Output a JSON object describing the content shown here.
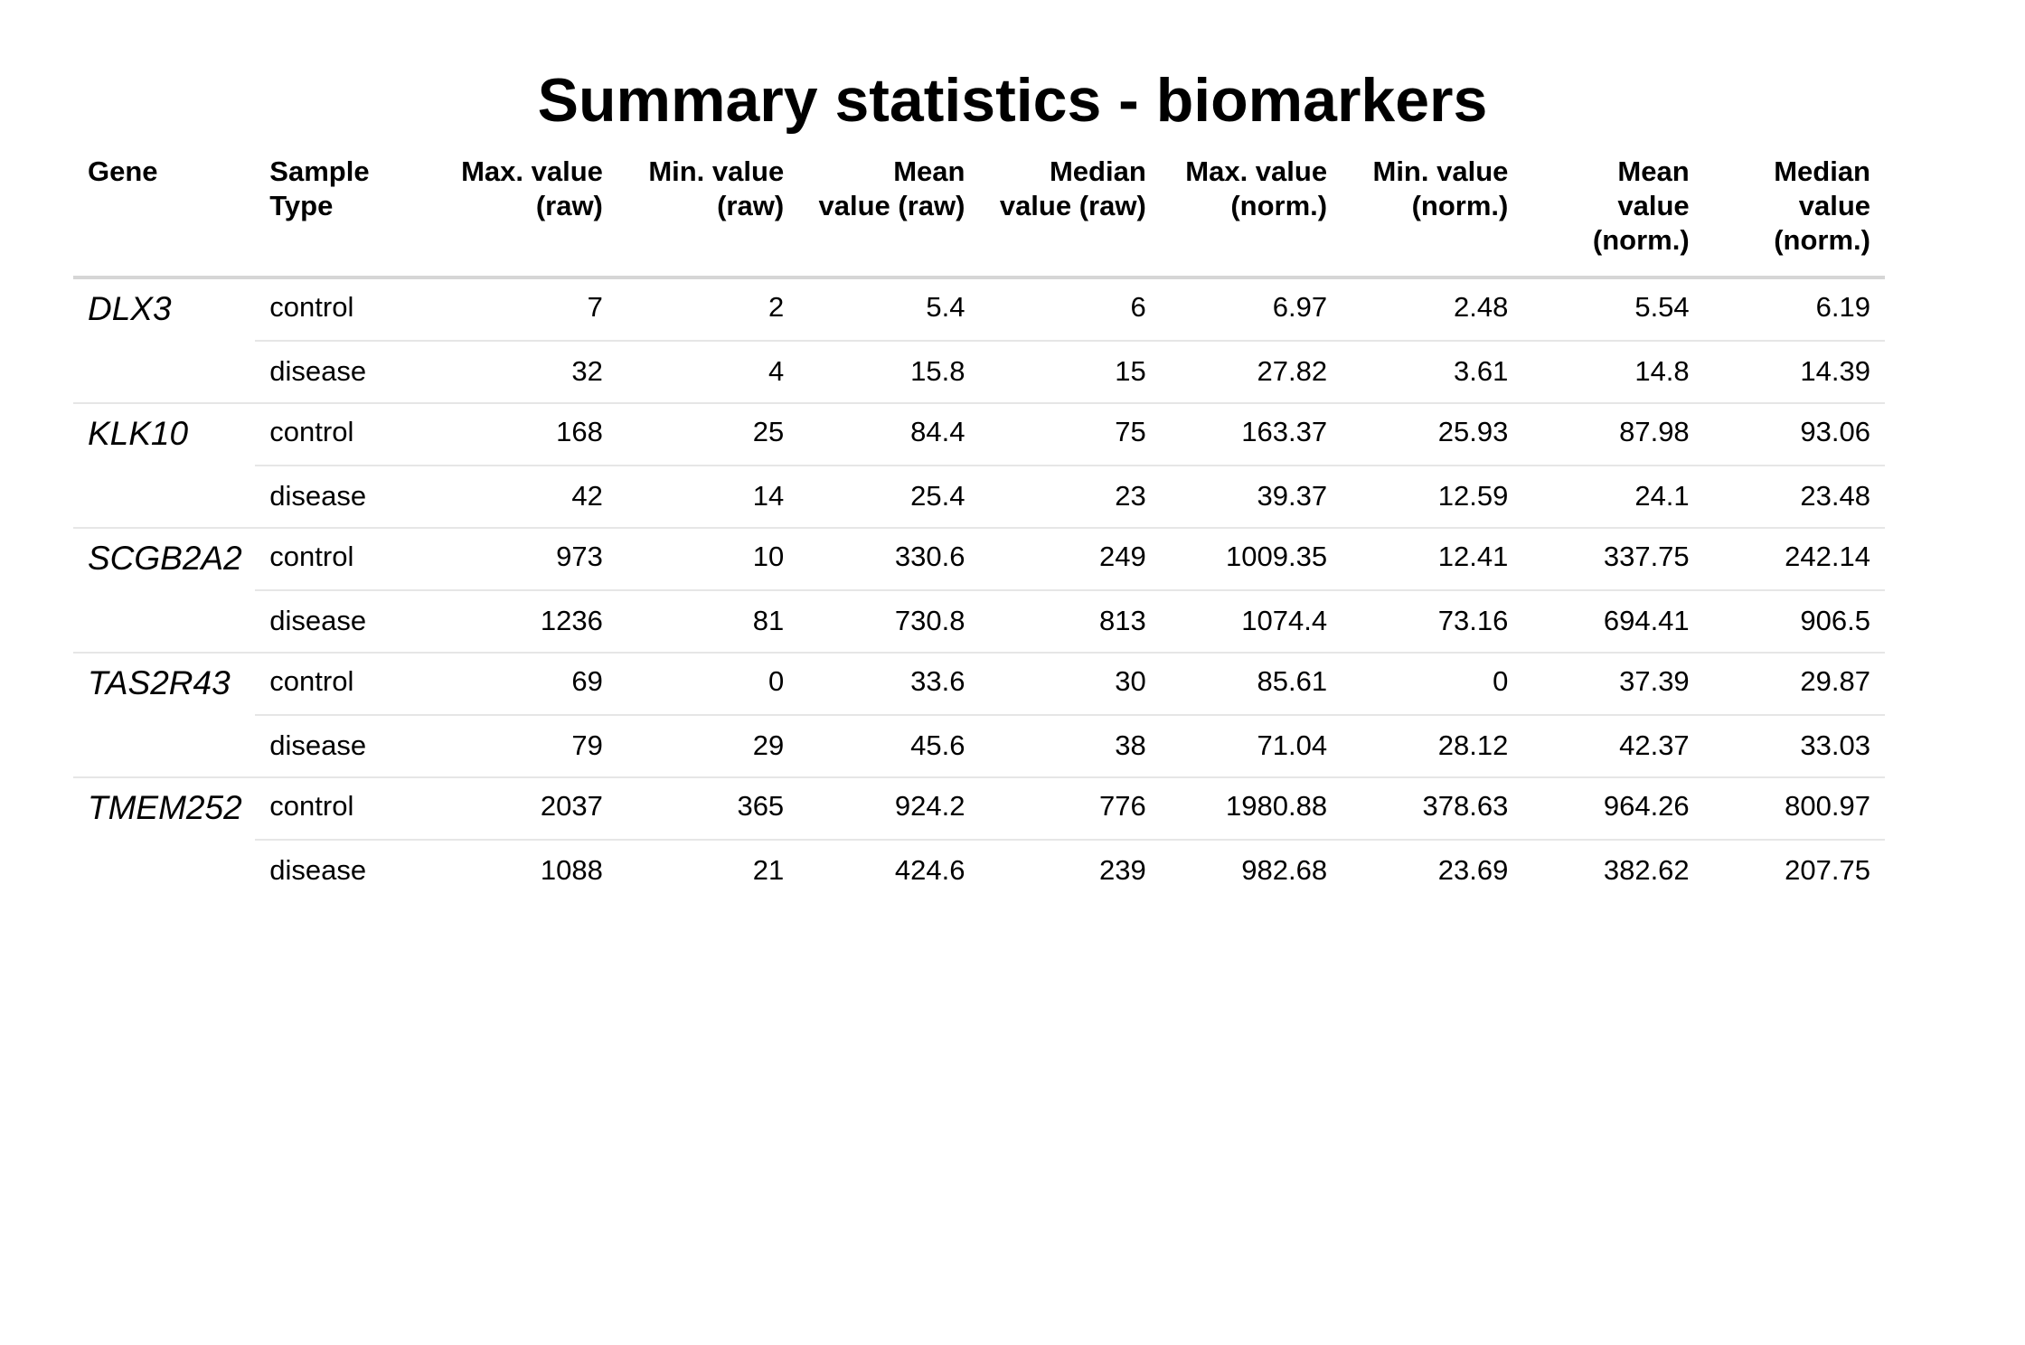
{
  "title": "Summary statistics - biomarkers",
  "chart_data": {
    "type": "table",
    "title": "Summary statistics - biomarkers",
    "columns": [
      "Gene",
      "Sample\nType",
      "Max. value\n(raw)",
      "Min. value\n(raw)",
      "Mean\nvalue (raw)",
      "Median\nvalue (raw)",
      "Max. value\n(norm.)",
      "Min. value\n(norm.)",
      "Mean\nvalue\n(norm.)",
      "Median\nvalue\n(norm.)"
    ],
    "groups": [
      {
        "gene": "DLX3",
        "rows": [
          [
            "control",
            "7",
            "2",
            "5.4",
            "6",
            "6.97",
            "2.48",
            "5.54",
            "6.19"
          ],
          [
            "disease",
            "32",
            "4",
            "15.8",
            "15",
            "27.82",
            "3.61",
            "14.8",
            "14.39"
          ]
        ]
      },
      {
        "gene": "KLK10",
        "rows": [
          [
            "control",
            "168",
            "25",
            "84.4",
            "75",
            "163.37",
            "25.93",
            "87.98",
            "93.06"
          ],
          [
            "disease",
            "42",
            "14",
            "25.4",
            "23",
            "39.37",
            "12.59",
            "24.1",
            "23.48"
          ]
        ]
      },
      {
        "gene": "SCGB2A2",
        "rows": [
          [
            "control",
            "973",
            "10",
            "330.6",
            "249",
            "1009.35",
            "12.41",
            "337.75",
            "242.14"
          ],
          [
            "disease",
            "1236",
            "81",
            "730.8",
            "813",
            "1074.4",
            "73.16",
            "694.41",
            "906.5"
          ]
        ]
      },
      {
        "gene": "TAS2R43",
        "rows": [
          [
            "control",
            "69",
            "0",
            "33.6",
            "30",
            "85.61",
            "0",
            "37.39",
            "29.87"
          ],
          [
            "disease",
            "79",
            "29",
            "45.6",
            "38",
            "71.04",
            "28.12",
            "42.37",
            "33.03"
          ]
        ]
      },
      {
        "gene": "TMEM252",
        "rows": [
          [
            "control",
            "2037",
            "365",
            "924.2",
            "776",
            "1980.88",
            "378.63",
            "964.26",
            "800.97"
          ],
          [
            "disease",
            "1088",
            "21",
            "424.6",
            "239",
            "982.68",
            "23.69",
            "382.62",
            "207.75"
          ]
        ]
      }
    ]
  }
}
